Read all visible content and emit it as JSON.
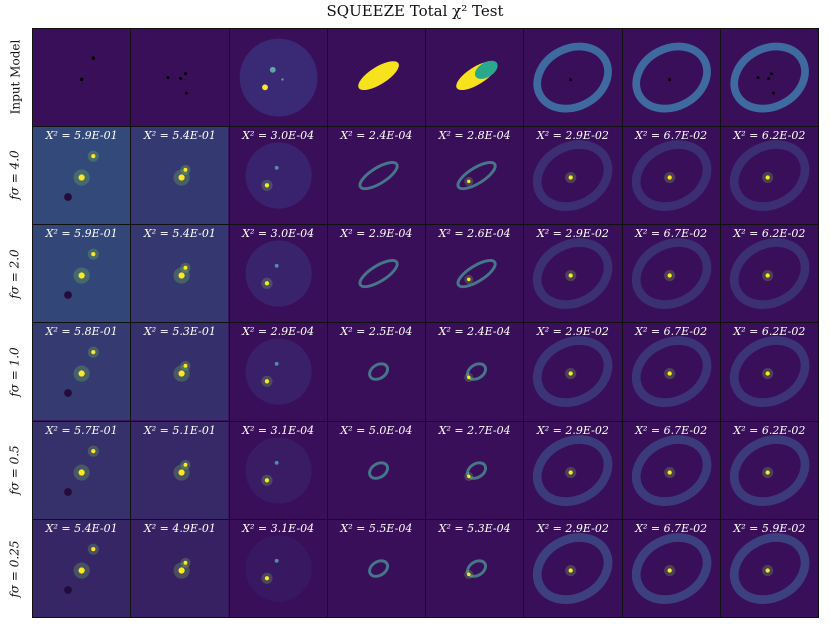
{
  "figure": {
    "title": "SQUEEZE Total χ² Test"
  },
  "rows": [
    {
      "label": "Input Model",
      "style": "plain",
      "chi": [
        "",
        "",
        "",
        "",
        "",
        "",
        "",
        ""
      ]
    },
    {
      "label": "fσ = 4.0",
      "style": "math",
      "chi": [
        "X² = 5.9E-01",
        "X² = 5.4E-01",
        "X² = 3.0E-04",
        "X² = 2.4E-04",
        "X² = 2.8E-04",
        "X² = 2.9E-02",
        "X² = 6.7E-02",
        "X² = 6.2E-02"
      ]
    },
    {
      "label": "fσ = 2.0",
      "style": "math",
      "chi": [
        "X² = 5.9E-01",
        "X² = 5.4E-01",
        "X² = 3.0E-04",
        "X² = 2.9E-04",
        "X² = 2.6E-04",
        "X² = 2.9E-02",
        "X² = 6.7E-02",
        "X² = 6.2E-02"
      ]
    },
    {
      "label": "fσ = 1.0",
      "style": "math",
      "chi": [
        "X² = 5.8E-01",
        "X² = 5.3E-01",
        "X² = 2.9E-04",
        "X² = 2.5E-04",
        "X² = 2.4E-04",
        "X² = 2.9E-02",
        "X² = 6.7E-02",
        "X² = 6.2E-02"
      ]
    },
    {
      "label": "fσ = 0.5",
      "style": "math",
      "chi": [
        "X² = 5.7E-01",
        "X² = 5.1E-01",
        "X² = 3.1E-04",
        "X² = 5.0E-04",
        "X² = 2.7E-04",
        "X² = 2.9E-02",
        "X² = 6.7E-02",
        "X² = 6.2E-02"
      ]
    },
    {
      "label": "fσ = 0.25",
      "style": "math",
      "chi": [
        "X² = 5.4E-01",
        "X² = 4.9E-01",
        "X² = 3.1E-04",
        "X² = 5.5E-04",
        "X² = 5.3E-04",
        "X² = 2.9E-02",
        "X² = 6.7E-02",
        "X² = 5.9E-02"
      ]
    }
  ],
  "colors": {
    "background": "#3a0f59",
    "point": "#fde725",
    "disk": "#3b5ba5",
    "ring": "#3e6aa0",
    "ellipse": "#f6e31d",
    "ellipse_alt": "#29a88c",
    "glow": "#7fd34e"
  }
}
